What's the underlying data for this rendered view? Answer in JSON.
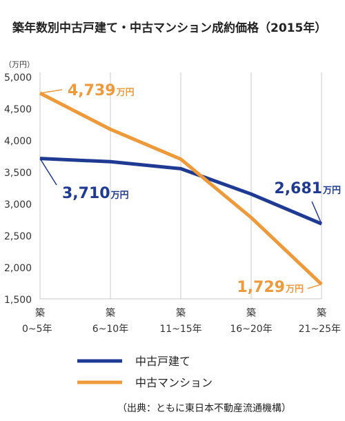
{
  "chart_data": {
    "type": "line",
    "title": "築年数別中古戸建て・中古マンション成約価格（2015年）",
    "y_unit_label": "（万円）",
    "categories": [
      {
        "top": "築",
        "bottom": "0~5年"
      },
      {
        "top": "築",
        "bottom": "6~10年"
      },
      {
        "top": "築",
        "bottom": "11~15年"
      },
      {
        "top": "築",
        "bottom": "16~20年"
      },
      {
        "top": "築",
        "bottom": "21~25年"
      }
    ],
    "ylim": [
      1500,
      5000
    ],
    "yticks": [
      "5,000",
      "4,500",
      "4,000",
      "3,500",
      "3,000",
      "2,500",
      "2,000",
      "1,500"
    ],
    "ytick_values": [
      5000,
      4500,
      4000,
      3500,
      3000,
      2500,
      2000,
      1500
    ],
    "series": [
      {
        "name": "中古戸建て",
        "color": "#1f3a93",
        "values": [
          3710,
          3660,
          3550,
          3150,
          2681
        ],
        "labels": [
          {
            "index": 0,
            "number": "3,710",
            "unit": "万円"
          },
          {
            "index": 4,
            "number": "2,681",
            "unit": "万円"
          }
        ]
      },
      {
        "name": "中古マンション",
        "color": "#ef9a3a",
        "values": [
          4739,
          4170,
          3700,
          2780,
          1729
        ],
        "labels": [
          {
            "index": 0,
            "number": "4,739",
            "unit": "万円"
          },
          {
            "index": 4,
            "number": "1,729",
            "unit": "万円"
          }
        ]
      }
    ],
    "grid": true,
    "legend_position": "bottom-left",
    "source": "（出典：ともに東日本不動産流通機構）"
  }
}
